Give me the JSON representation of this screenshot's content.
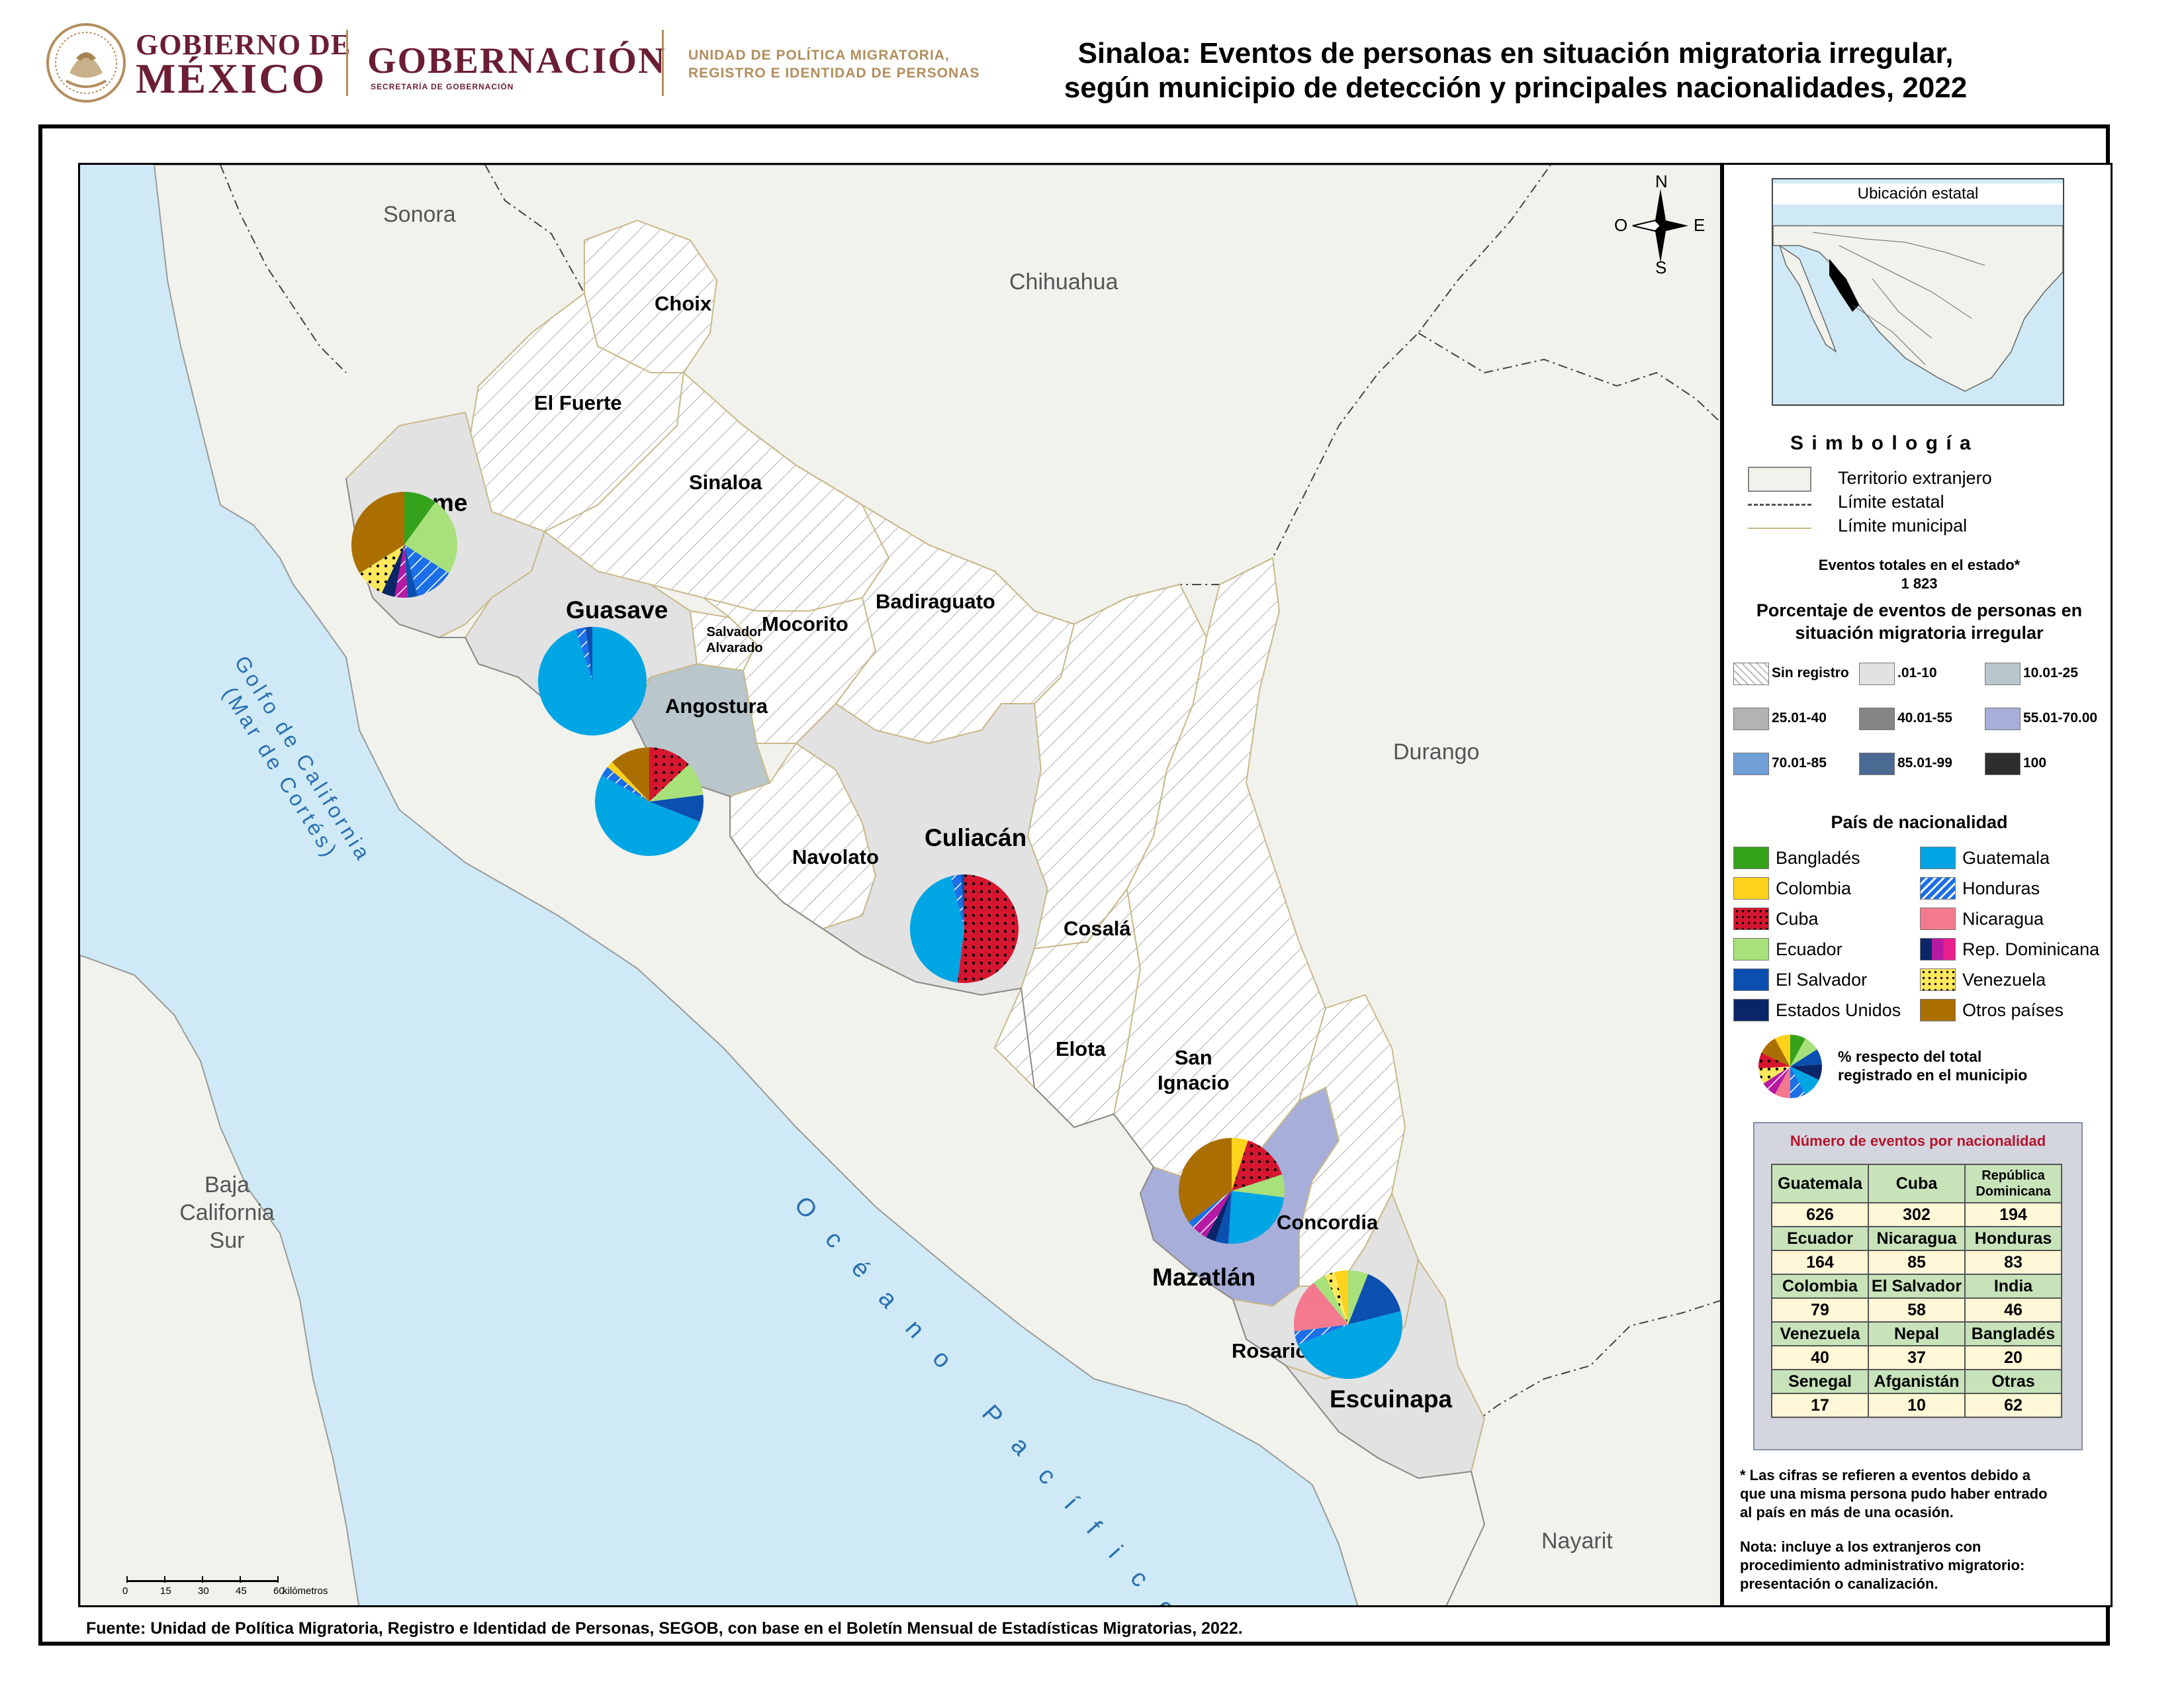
{
  "header": {
    "gobierno_line1": "GOBIERNO DE",
    "gobierno_line2": "MÉXICO",
    "gobernacion": "GOBERNACIÓN",
    "secretaria": "SECRETARÍA DE GOBERNACIÓN",
    "unidad_line1": "UNIDAD DE POLÍTICA MIGRATORIA,",
    "unidad_line2": "REGISTRO E IDENTIDAD DE PERSONAS",
    "title_line1": "Sinaloa: Eventos de personas en situación migratoria irregular,",
    "title_line2": "según municipio de detección y principales nacionalidades, 2022"
  },
  "colors": {
    "Bangladés": "#35a21c",
    "Colombia": "#ffd21c",
    "Cuba": "#d6162f",
    "Ecuador": "#a8e07a",
    "El Salvador": "#0b4fb0",
    "Estados Unidos": "#0a2568",
    "Guatemala": "#00a5e3",
    "Honduras": "#1b6fe8",
    "Nicaragua": "#f4798f",
    "Rep. Dominicana": "#b51aa3",
    "Venezuela": "#ffe85c",
    "Otros países": "#aa6f00",
    "sea": "#cfeaf6",
    "foreign": "#f1f2ec",
    "muni_light": "#e2e2e2",
    "muni_10_25": "#b9c7cc",
    "muni_55_70": "#a7aed9"
  },
  "map": {
    "neighbors": {
      "sonora": "Sonora",
      "chihuahua": "Chihuahua",
      "durango": "Durango",
      "nayarit": "Nayarit",
      "bcs_line1": "Baja",
      "bcs_line2": "California",
      "bcs_line3": "Sur"
    },
    "seas": {
      "golfo_line1": "Golfo de California",
      "golfo_line2": "(Mar de Cortés)",
      "oceano": "Océano Pacífico"
    },
    "municipios": {
      "choix": "Choix",
      "el_fuerte": "El Fuerte",
      "sinaloa": "Sinaloa",
      "ahome": "Ahome",
      "guasave": "Guasave",
      "salvador_alvarado_1": "Salvador",
      "salvador_alvarado_2": "Alvarado",
      "mocorito": "Mocorito",
      "badiraguato": "Badiraguato",
      "angostura": "Angostura",
      "navolato": "Navolato",
      "culiacan": "Culiacán",
      "cosala": "Cosalá",
      "elota": "Elota",
      "san_ignacio_1": "San",
      "san_ignacio_2": "Ignacio",
      "concordia": "Concordia",
      "mazatlan": "Mazatlán",
      "rosario": "Rosario",
      "escuinapa": "Escuinapa"
    },
    "compass": {
      "n": "N",
      "s": "S",
      "e": "E",
      "o": "O"
    },
    "scale": {
      "ticks": [
        "0",
        "15",
        "30",
        "45",
        "60"
      ],
      "unit": "kilómetros"
    }
  },
  "pie_data": [
    {
      "municipio": "Ahome",
      "slices": [
        {
          "country": "Bangladés",
          "pct": 10
        },
        {
          "country": "Ecuador",
          "pct": 24
        },
        {
          "country": "Honduras",
          "pct": 12
        },
        {
          "country": "El Salvador",
          "pct": 3
        },
        {
          "country": "Rep. Dominicana",
          "pct": 4
        },
        {
          "country": "Estados Unidos",
          "pct": 4
        },
        {
          "country": "Venezuela",
          "pct": 9
        },
        {
          "country": "Otros países",
          "pct": 34
        }
      ]
    },
    {
      "municipio": "Guasave",
      "slices": [
        {
          "country": "Guatemala",
          "pct": 95
        },
        {
          "country": "Honduras",
          "pct": 3
        },
        {
          "country": "El Salvador",
          "pct": 2
        }
      ]
    },
    {
      "municipio": "Angostura",
      "slices": [
        {
          "country": "Cuba",
          "pct": 13
        },
        {
          "country": "Ecuador",
          "pct": 10
        },
        {
          "country": "El Salvador",
          "pct": 8
        },
        {
          "country": "Guatemala",
          "pct": 52
        },
        {
          "country": "Honduras",
          "pct": 3
        },
        {
          "country": "Colombia",
          "pct": 2
        },
        {
          "country": "Otros países",
          "pct": 12
        }
      ]
    },
    {
      "municipio": "Culiacán",
      "slices": [
        {
          "country": "Cuba",
          "pct": 52
        },
        {
          "country": "Guatemala",
          "pct": 44
        },
        {
          "country": "Honduras",
          "pct": 3
        },
        {
          "country": "El Salvador",
          "pct": 1
        }
      ]
    },
    {
      "municipio": "Mazatlán",
      "slices": [
        {
          "country": "Colombia",
          "pct": 5
        },
        {
          "country": "Cuba",
          "pct": 15
        },
        {
          "country": "Ecuador",
          "pct": 7
        },
        {
          "country": "Guatemala",
          "pct": 24
        },
        {
          "country": "El Salvador",
          "pct": 4
        },
        {
          "country": "Estados Unidos",
          "pct": 3
        },
        {
          "country": "Rep. Dominicana",
          "pct": 5
        },
        {
          "country": "Honduras",
          "pct": 2
        },
        {
          "country": "Otros países",
          "pct": 35
        }
      ]
    },
    {
      "municipio": "Escuinapa",
      "slices": [
        {
          "country": "Ecuador",
          "pct": 6
        },
        {
          "country": "El Salvador",
          "pct": 15
        },
        {
          "country": "Guatemala",
          "pct": 48
        },
        {
          "country": "Honduras",
          "pct": 4
        },
        {
          "country": "Nicaragua",
          "pct": 16
        },
        {
          "country": "Ecuador",
          "pct": 4
        },
        {
          "country": "Venezuela",
          "pct": 3
        },
        {
          "country": "Colombia",
          "pct": 4
        }
      ]
    },
    {
      "municipio": "legend-example",
      "slices": [
        {
          "country": "Bangladés",
          "pct": 8
        },
        {
          "country": "Ecuador",
          "pct": 8
        },
        {
          "country": "El Salvador",
          "pct": 8
        },
        {
          "country": "Estados Unidos",
          "pct": 8
        },
        {
          "country": "Guatemala",
          "pct": 10
        },
        {
          "country": "Honduras",
          "pct": 8
        },
        {
          "country": "Nicaragua",
          "pct": 8
        },
        {
          "country": "Rep. Dominicana",
          "pct": 8
        },
        {
          "country": "Venezuela",
          "pct": 8
        },
        {
          "country": "Cuba",
          "pct": 8
        },
        {
          "country": "Otros países",
          "pct": 10
        },
        {
          "country": "Colombia",
          "pct": 8
        }
      ]
    }
  ],
  "legend": {
    "inset_title": "Ubicación estatal",
    "simbologia": "S i m b o l o g í a",
    "territorio": "Territorio extranjero",
    "limite_estatal": "Límite estatal",
    "limite_municipal": "Límite municipal",
    "eventos_label": "Eventos totales en el estado*",
    "eventos_total": "1 823",
    "porcentaje_line1": "Porcentaje de eventos de personas en",
    "porcentaje_line2": "situación migratoria irregular",
    "classes": [
      "Sin registro",
      ".01-10",
      "10.01-25",
      "25.01-40",
      "40.01-55",
      "55.01-70.00",
      "70.01-85",
      "85.01-99",
      "100"
    ],
    "class_colors": [
      "#ffffff",
      "#e2e2e2",
      "#b9c7cc",
      "#b3b3b3",
      "#858585",
      "#a7aed9",
      "#6f9fd6",
      "#4a6a93",
      "#2e2e2e"
    ],
    "pais_title": "País de nacionalidad",
    "countries_left": [
      "Bangladés",
      "Colombia",
      "Cuba",
      "Ecuador",
      "El Salvador",
      "Estados Unidos"
    ],
    "countries_right": [
      "Guatemala",
      "Honduras",
      "Nicaragua",
      "Rep. Dominicana",
      "Venezuela",
      "Otros países"
    ],
    "pie_note_line1": "% respecto del total",
    "pie_note_line2": "registrado en el municipio",
    "table_title": "Número de eventos por nacionalidad",
    "table": [
      {
        "names": [
          "Guatemala",
          "Cuba",
          "República Dominicana"
        ],
        "values": [
          "626",
          "302",
          "194"
        ]
      },
      {
        "names": [
          "Ecuador",
          "Nicaragua",
          "Honduras"
        ],
        "values": [
          "164",
          "85",
          "83"
        ]
      },
      {
        "names": [
          "Colombia",
          "El Salvador",
          "India"
        ],
        "values": [
          "79",
          "58",
          "46"
        ]
      },
      {
        "names": [
          "Venezuela",
          "Nepal",
          "Bangladés"
        ],
        "values": [
          "40",
          "37",
          "20"
        ]
      },
      {
        "names": [
          "Senegal",
          "Afganistán",
          "Otras"
        ],
        "values": [
          "17",
          "10",
          "62"
        ]
      }
    ],
    "note1_line1": "* Las cifras se refieren a eventos debido a",
    "note1_line2": "que una misma persona pudo haber entrado",
    "note1_line3": "al país en más de una ocasión.",
    "note2_line1": "Nota: incluye a los extranjeros con",
    "note2_line2": "procedimiento administrativo migratorio:",
    "note2_line3": "presentación o canalización."
  },
  "footer": {
    "fuente": "Fuente: Unidad de Política Migratoria, Registro e Identidad de Personas, SEGOB, con base en el Boletín Mensual de Estadísticas Migratorias, 2022."
  }
}
